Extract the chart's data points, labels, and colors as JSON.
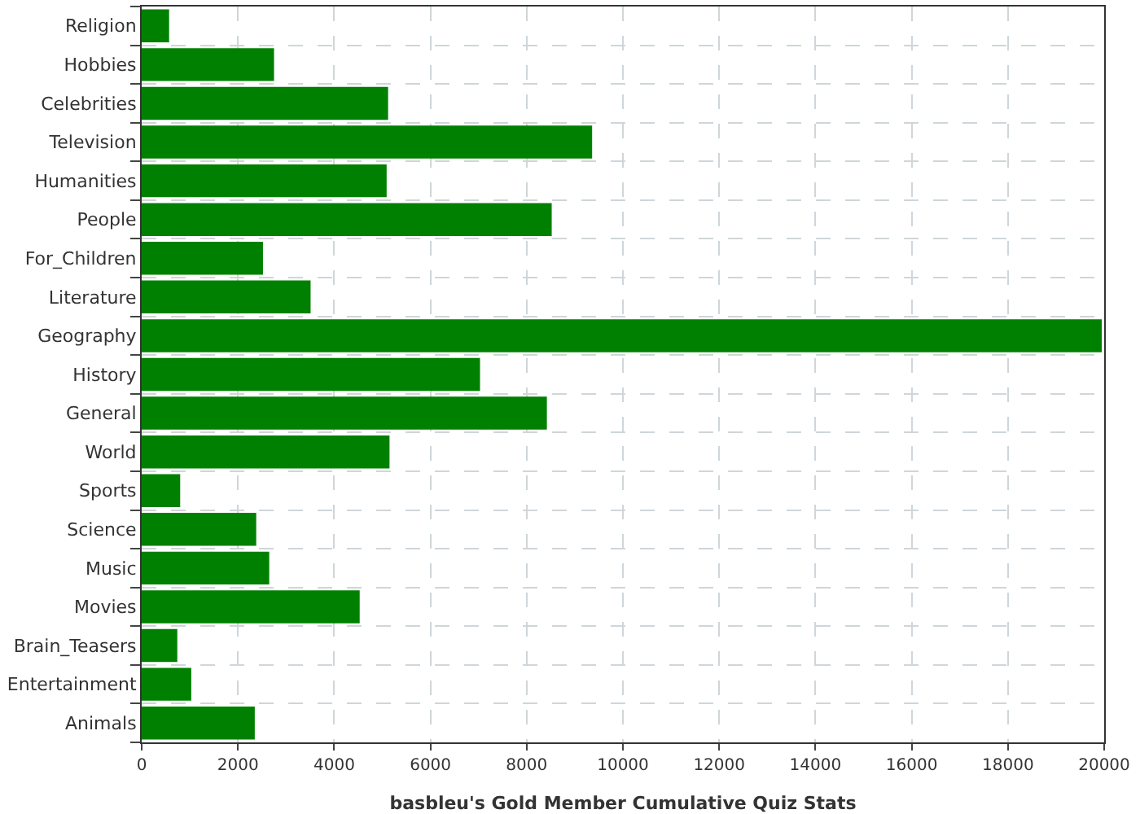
{
  "chart_data": {
    "type": "bar",
    "orientation": "horizontal",
    "xlabel": "basbleu's Gold Member Cumulative Quiz Stats",
    "categories": [
      "Religion",
      "Hobbies",
      "Celebrities",
      "Television",
      "Humanities",
      "People",
      "For_Children",
      "Literature",
      "Geography",
      "History",
      "General",
      "World",
      "Sports",
      "Science",
      "Music",
      "Movies",
      "Brain_Teasers",
      "Entertainment",
      "Animals"
    ],
    "values": [
      570,
      2750,
      5120,
      9360,
      5090,
      8520,
      2520,
      3510,
      19950,
      7030,
      8420,
      5150,
      800,
      2380,
      2650,
      4530,
      740,
      1030,
      2350
    ],
    "color": "#008000",
    "xlim": [
      0,
      20000
    ],
    "xticks": [
      0,
      2000,
      4000,
      6000,
      8000,
      10000,
      12000,
      14000,
      16000,
      18000,
      20000
    ],
    "grid": true
  }
}
